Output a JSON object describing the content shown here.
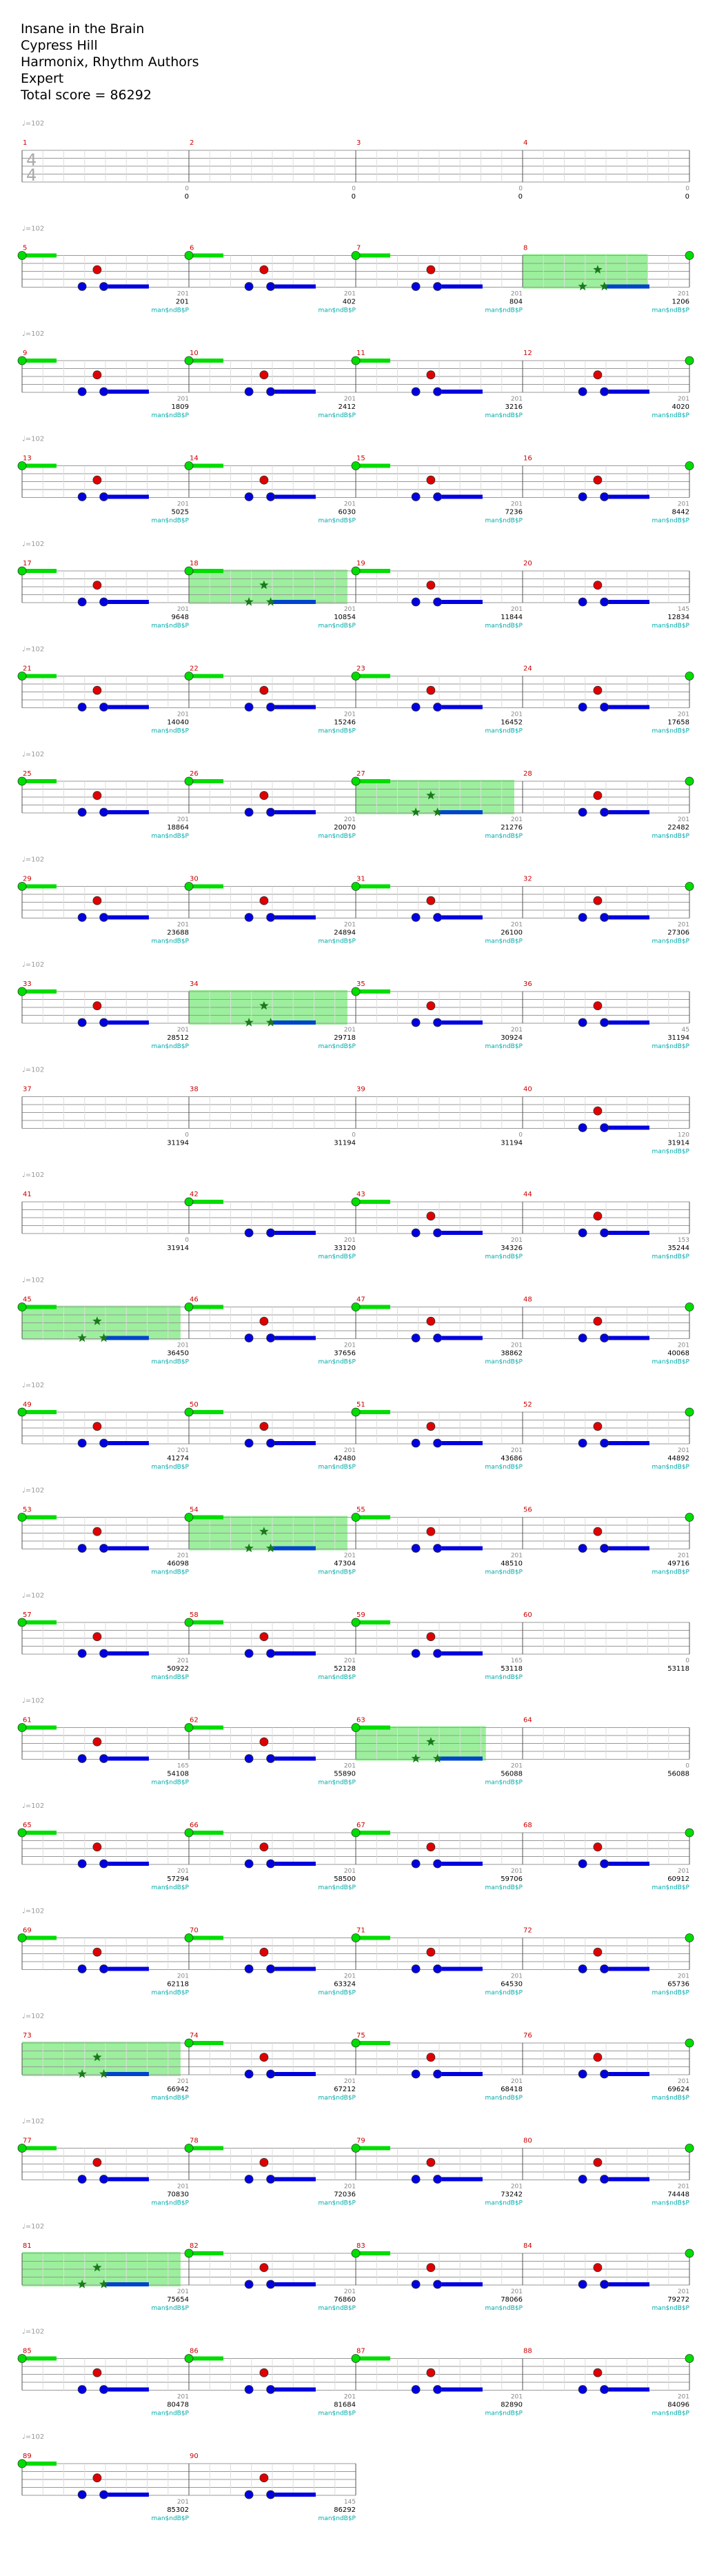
{
  "header": {
    "title": "Insane in the Brain",
    "artist": "Cypress Hill",
    "charter": "Harmonix, Rhythm Authors",
    "difficulty": "Expert",
    "total_score": "Total score = 86292"
  },
  "tempo_label": "♩=102",
  "bonus_label": "man$ndB$P",
  "time_signature": [
    "4",
    "4"
  ],
  "colors": {
    "green": "#00dd00",
    "red": "#e00000",
    "blue": "#0000e0",
    "star_power": "#8bec8b",
    "measure_number": "#cc0000",
    "score_text": "#000000",
    "bonus_text": "#00aaaa",
    "measure_score_text": "#888888"
  },
  "measures": [
    {
      "n": 1,
      "row": 0,
      "sp": null,
      "g": "",
      "notes": [],
      "ms": "0",
      "cum": "0"
    },
    {
      "n": 2,
      "row": 0,
      "sp": null,
      "g": "",
      "notes": [],
      "ms": "0",
      "cum": "0"
    },
    {
      "n": 3,
      "row": 0,
      "sp": null,
      "g": "",
      "notes": [],
      "ms": "0",
      "cum": "0"
    },
    {
      "n": 4,
      "row": 0,
      "sp": null,
      "g": "",
      "notes": [],
      "ms": "0",
      "cum": "0"
    },
    {
      "n": 5,
      "row": 1,
      "sp": null,
      "g": "long",
      "notes": [
        "r",
        "b"
      ],
      "ms": "201",
      "cum": "201"
    },
    {
      "n": 6,
      "row": 1,
      "sp": null,
      "g": "long",
      "notes": [
        "r",
        "b"
      ],
      "ms": "201",
      "cum": "402"
    },
    {
      "n": 7,
      "row": 1,
      "sp": null,
      "g": "long",
      "notes": [
        "r",
        "b"
      ],
      "ms": "201",
      "cum": "804"
    },
    {
      "n": 8,
      "row": 1,
      "sp": [
        0,
        0.75
      ],
      "g": "end",
      "notes": [
        "r",
        "b"
      ],
      "ms": "201",
      "cum": "1206"
    },
    {
      "n": 9,
      "row": 2,
      "sp": null,
      "g": "long",
      "notes": [
        "r",
        "b"
      ],
      "ms": "201",
      "cum": "1809"
    },
    {
      "n": 10,
      "row": 2,
      "sp": null,
      "g": "long",
      "notes": [
        "r",
        "b"
      ],
      "ms": "201",
      "cum": "2412"
    },
    {
      "n": 11,
      "row": 2,
      "sp": null,
      "g": "long",
      "notes": [
        "r",
        "b"
      ],
      "ms": "201",
      "cum": "3216"
    },
    {
      "n": 12,
      "row": 2,
      "sp": null,
      "g": "end",
      "notes": [
        "r",
        "b"
      ],
      "ms": "201",
      "cum": "4020"
    },
    {
      "n": 13,
      "row": 3,
      "sp": null,
      "g": "long",
      "notes": [
        "r",
        "b"
      ],
      "ms": "201",
      "cum": "5025"
    },
    {
      "n": 14,
      "row": 3,
      "sp": null,
      "g": "long",
      "notes": [
        "r",
        "b"
      ],
      "ms": "201",
      "cum": "6030"
    },
    {
      "n": 15,
      "row": 3,
      "sp": null,
      "g": "long",
      "notes": [
        "r",
        "b"
      ],
      "ms": "201",
      "cum": "7236"
    },
    {
      "n": 16,
      "row": 3,
      "sp": null,
      "g": "end",
      "notes": [
        "r",
        "b"
      ],
      "ms": "201",
      "cum": "8442"
    },
    {
      "n": 17,
      "row": 4,
      "sp": null,
      "g": "long",
      "notes": [
        "r",
        "b"
      ],
      "ms": "201",
      "cum": "9648"
    },
    {
      "n": 18,
      "row": 4,
      "sp": [
        0,
        0.95
      ],
      "g": "long",
      "notes": [
        "r",
        "b"
      ],
      "ms": "201",
      "cum": "10854"
    },
    {
      "n": 19,
      "row": 4,
      "sp": null,
      "g": "long",
      "notes": [
        "r",
        "b"
      ],
      "ms": "201",
      "cum": "11844"
    },
    {
      "n": 20,
      "row": 4,
      "sp": null,
      "g": "",
      "notes": [
        "r",
        "b"
      ],
      "ms": "145",
      "cum": "12834"
    },
    {
      "n": 21,
      "row": 5,
      "sp": null,
      "g": "long",
      "notes": [
        "r",
        "b"
      ],
      "ms": "201",
      "cum": "14040"
    },
    {
      "n": 22,
      "row": 5,
      "sp": null,
      "g": "long",
      "notes": [
        "r",
        "b"
      ],
      "ms": "201",
      "cum": "15246"
    },
    {
      "n": 23,
      "row": 5,
      "sp": null,
      "g": "long",
      "notes": [
        "r",
        "b"
      ],
      "ms": "201",
      "cum": "16452"
    },
    {
      "n": 24,
      "row": 5,
      "sp": null,
      "g": "end",
      "notes": [
        "r",
        "b"
      ],
      "ms": "201",
      "cum": "17658"
    },
    {
      "n": 25,
      "row": 6,
      "sp": null,
      "g": "long",
      "notes": [
        "r",
        "b"
      ],
      "ms": "201",
      "cum": "18864"
    },
    {
      "n": 26,
      "row": 6,
      "sp": null,
      "g": "long",
      "notes": [
        "r",
        "b"
      ],
      "ms": "201",
      "cum": "20070"
    },
    {
      "n": 27,
      "row": 6,
      "sp": [
        0,
        0.95
      ],
      "g": "long",
      "notes": [
        "r",
        "b"
      ],
      "ms": "201",
      "cum": "21276"
    },
    {
      "n": 28,
      "row": 6,
      "sp": null,
      "g": "end",
      "notes": [
        "r",
        "b"
      ],
      "ms": "201",
      "cum": "22482"
    },
    {
      "n": 29,
      "row": 7,
      "sp": null,
      "g": "long",
      "notes": [
        "r",
        "b"
      ],
      "ms": "201",
      "cum": "23688"
    },
    {
      "n": 30,
      "row": 7,
      "sp": null,
      "g": "long",
      "notes": [
        "r",
        "b"
      ],
      "ms": "201",
      "cum": "24894"
    },
    {
      "n": 31,
      "row": 7,
      "sp": null,
      "g": "long",
      "notes": [
        "r",
        "b"
      ],
      "ms": "201",
      "cum": "26100"
    },
    {
      "n": 32,
      "row": 7,
      "sp": null,
      "g": "end",
      "notes": [
        "r",
        "b"
      ],
      "ms": "201",
      "cum": "27306"
    },
    {
      "n": 33,
      "row": 8,
      "sp": null,
      "g": "long",
      "notes": [
        "r",
        "b"
      ],
      "ms": "201",
      "cum": "28512"
    },
    {
      "n": 34,
      "row": 8,
      "sp": [
        0,
        0.95
      ],
      "g": "",
      "notes": [
        "r",
        "b"
      ],
      "ms": "201",
      "cum": "29718"
    },
    {
      "n": 35,
      "row": 8,
      "sp": null,
      "g": "long",
      "notes": [
        "r",
        "b"
      ],
      "ms": "201",
      "cum": "30924"
    },
    {
      "n": 36,
      "row": 8,
      "sp": null,
      "g": "",
      "notes": [
        "r",
        "b"
      ],
      "ms": "45",
      "cum": "31194"
    },
    {
      "n": 37,
      "row": 9,
      "sp": null,
      "g": "",
      "notes": [],
      "ms": "0",
      "cum": "31194"
    },
    {
      "n": 38,
      "row": 9,
      "sp": null,
      "g": "",
      "notes": [],
      "ms": "0",
      "cum": "31194"
    },
    {
      "n": 39,
      "row": 9,
      "sp": null,
      "g": "",
      "notes": [],
      "ms": "0",
      "cum": "31194"
    },
    {
      "n": 40,
      "row": 9,
      "sp": null,
      "g": "",
      "notes": [
        "r",
        "b"
      ],
      "ms": "120",
      "cum": "31914"
    },
    {
      "n": 41,
      "row": 10,
      "sp": null,
      "g": "",
      "notes": [],
      "ms": "0",
      "cum": "31914"
    },
    {
      "n": 42,
      "row": 10,
      "sp": null,
      "g": "long",
      "notes": [
        "b"
      ],
      "ms": "201",
      "cum": "33120"
    },
    {
      "n": 43,
      "row": 10,
      "sp": null,
      "g": "long",
      "notes": [
        "r",
        "b"
      ],
      "ms": "201",
      "cum": "34326"
    },
    {
      "n": 44,
      "row": 10,
      "sp": null,
      "g": "",
      "notes": [
        "r",
        "b"
      ],
      "ms": "153",
      "cum": "35244"
    },
    {
      "n": 45,
      "row": 11,
      "sp": [
        0,
        0.95
      ],
      "g": "long",
      "notes": [
        "r",
        "b"
      ],
      "ms": "201",
      "cum": "36450"
    },
    {
      "n": 46,
      "row": 11,
      "sp": null,
      "g": "long",
      "notes": [
        "r",
        "b"
      ],
      "ms": "201",
      "cum": "37656"
    },
    {
      "n": 47,
      "row": 11,
      "sp": null,
      "g": "long",
      "notes": [
        "r",
        "b"
      ],
      "ms": "201",
      "cum": "38862"
    },
    {
      "n": 48,
      "row": 11,
      "sp": null,
      "g": "end",
      "notes": [
        "r",
        "b"
      ],
      "ms": "201",
      "cum": "40068"
    },
    {
      "n": 49,
      "row": 12,
      "sp": null,
      "g": "long",
      "notes": [
        "r",
        "b"
      ],
      "ms": "201",
      "cum": "41274"
    },
    {
      "n": 50,
      "row": 12,
      "sp": null,
      "g": "long",
      "notes": [
        "r",
        "b"
      ],
      "ms": "201",
      "cum": "42480"
    },
    {
      "n": 51,
      "row": 12,
      "sp": null,
      "g": "long",
      "notes": [
        "r",
        "b"
      ],
      "ms": "201",
      "cum": "43686"
    },
    {
      "n": 52,
      "row": 12,
      "sp": null,
      "g": "end",
      "notes": [
        "r",
        "b"
      ],
      "ms": "201",
      "cum": "44892"
    },
    {
      "n": 53,
      "row": 13,
      "sp": null,
      "g": "long",
      "notes": [
        "r",
        "b"
      ],
      "ms": "201",
      "cum": "46098"
    },
    {
      "n": 54,
      "row": 13,
      "sp": [
        0,
        0.95
      ],
      "g": "long",
      "notes": [
        "r",
        "b"
      ],
      "ms": "201",
      "cum": "47304"
    },
    {
      "n": 55,
      "row": 13,
      "sp": null,
      "g": "long",
      "notes": [
        "r",
        "b"
      ],
      "ms": "201",
      "cum": "48510"
    },
    {
      "n": 56,
      "row": 13,
      "sp": null,
      "g": "end",
      "notes": [
        "r",
        "b"
      ],
      "ms": "201",
      "cum": "49716"
    },
    {
      "n": 57,
      "row": 14,
      "sp": null,
      "g": "long",
      "notes": [
        "r",
        "b"
      ],
      "ms": "201",
      "cum": "50922"
    },
    {
      "n": 58,
      "row": 14,
      "sp": null,
      "g": "long",
      "notes": [
        "r",
        "b"
      ],
      "ms": "201",
      "cum": "52128"
    },
    {
      "n": 59,
      "row": 14,
      "sp": null,
      "g": "long",
      "notes": [
        "r",
        "b"
      ],
      "ms": "165",
      "cum": "53118"
    },
    {
      "n": 60,
      "row": 14,
      "sp": null,
      "g": "",
      "notes": [],
      "ms": "0",
      "cum": "53118"
    },
    {
      "n": 61,
      "row": 15,
      "sp": null,
      "g": "long",
      "notes": [
        "r",
        "b"
      ],
      "ms": "165",
      "cum": "54108"
    },
    {
      "n": 62,
      "row": 15,
      "sp": null,
      "g": "long",
      "notes": [
        "r",
        "b"
      ],
      "ms": "201",
      "cum": "55890"
    },
    {
      "n": 63,
      "row": 15,
      "sp": [
        0,
        0.78
      ],
      "g": "long",
      "notes": [
        "r",
        "b"
      ],
      "ms": "201",
      "cum": "56088"
    },
    {
      "n": 64,
      "row": 15,
      "sp": null,
      "g": "",
      "notes": [],
      "ms": "0",
      "cum": "56088"
    },
    {
      "n": 65,
      "row": 16,
      "sp": null,
      "g": "long",
      "notes": [
        "r",
        "b"
      ],
      "ms": "201",
      "cum": "57294"
    },
    {
      "n": 66,
      "row": 16,
      "sp": null,
      "g": "long",
      "notes": [
        "r",
        "b"
      ],
      "ms": "201",
      "cum": "58500"
    },
    {
      "n": 67,
      "row": 16,
      "sp": null,
      "g": "long",
      "notes": [
        "r",
        "b"
      ],
      "ms": "201",
      "cum": "59706"
    },
    {
      "n": 68,
      "row": 16,
      "sp": null,
      "g": "end",
      "notes": [
        "r",
        "b"
      ],
      "ms": "201",
      "cum": "60912"
    },
    {
      "n": 69,
      "row": 17,
      "sp": null,
      "g": "long",
      "notes": [
        "r",
        "b"
      ],
      "ms": "201",
      "cum": "62118"
    },
    {
      "n": 70,
      "row": 17,
      "sp": null,
      "g": "long",
      "notes": [
        "r",
        "b"
      ],
      "ms": "201",
      "cum": "63324"
    },
    {
      "n": 71,
      "row": 17,
      "sp": null,
      "g": "long",
      "notes": [
        "r",
        "b"
      ],
      "ms": "201",
      "cum": "64530"
    },
    {
      "n": 72,
      "row": 17,
      "sp": null,
      "g": "end",
      "notes": [
        "r",
        "b"
      ],
      "ms": "201",
      "cum": "65736"
    },
    {
      "n": 73,
      "row": 18,
      "sp": [
        0,
        0.95
      ],
      "g": "",
      "notes": [
        "r",
        "b"
      ],
      "ms": "201",
      "cum": "66942"
    },
    {
      "n": 74,
      "row": 18,
      "sp": null,
      "g": "long",
      "notes": [
        "r",
        "b"
      ],
      "ms": "201",
      "cum": "67212"
    },
    {
      "n": 75,
      "row": 18,
      "sp": null,
      "g": "long",
      "notes": [
        "r",
        "b"
      ],
      "ms": "201",
      "cum": "68418"
    },
    {
      "n": 76,
      "row": 18,
      "sp": null,
      "g": "end",
      "notes": [
        "r",
        "b"
      ],
      "ms": "201",
      "cum": "69624"
    },
    {
      "n": 77,
      "row": 19,
      "sp": null,
      "g": "long",
      "notes": [
        "r",
        "b"
      ],
      "ms": "201",
      "cum": "70830"
    },
    {
      "n": 78,
      "row": 19,
      "sp": null,
      "g": "long",
      "notes": [
        "r",
        "b"
      ],
      "ms": "201",
      "cum": "72036"
    },
    {
      "n": 79,
      "row": 19,
      "sp": null,
      "g": "long",
      "notes": [
        "r",
        "b"
      ],
      "ms": "201",
      "cum": "73242"
    },
    {
      "n": 80,
      "row": 19,
      "sp": null,
      "g": "end",
      "notes": [
        "r",
        "b"
      ],
      "ms": "201",
      "cum": "74448"
    },
    {
      "n": 81,
      "row": 20,
      "sp": [
        0,
        0.95
      ],
      "g": "",
      "notes": [
        "r",
        "b"
      ],
      "ms": "201",
      "cum": "75654"
    },
    {
      "n": 82,
      "row": 20,
      "sp": null,
      "g": "long",
      "notes": [
        "r",
        "b"
      ],
      "ms": "201",
      "cum": "76860"
    },
    {
      "n": 83,
      "row": 20,
      "sp": null,
      "g": "long",
      "notes": [
        "r",
        "b"
      ],
      "ms": "201",
      "cum": "78066"
    },
    {
      "n": 84,
      "row": 20,
      "sp": null,
      "g": "end",
      "notes": [
        "r",
        "b"
      ],
      "ms": "201",
      "cum": "79272"
    },
    {
      "n": 85,
      "row": 21,
      "sp": null,
      "g": "long",
      "notes": [
        "r",
        "b"
      ],
      "ms": "201",
      "cum": "80478"
    },
    {
      "n": 86,
      "row": 21,
      "sp": null,
      "g": "long",
      "notes": [
        "r",
        "b"
      ],
      "ms": "201",
      "cum": "81684"
    },
    {
      "n": 87,
      "row": 21,
      "sp": null,
      "g": "long",
      "notes": [
        "r",
        "b"
      ],
      "ms": "201",
      "cum": "82890"
    },
    {
      "n": 88,
      "row": 21,
      "sp": null,
      "g": "end",
      "notes": [
        "r",
        "b"
      ],
      "ms": "201",
      "cum": "84096"
    },
    {
      "n": 89,
      "row": 22,
      "sp": null,
      "g": "long",
      "notes": [
        "r",
        "b"
      ],
      "ms": "201",
      "cum": "85302"
    },
    {
      "n": 90,
      "row": 22,
      "sp": null,
      "g": "",
      "notes": [
        "r",
        "b"
      ],
      "ms": "145",
      "cum": "86292"
    }
  ]
}
